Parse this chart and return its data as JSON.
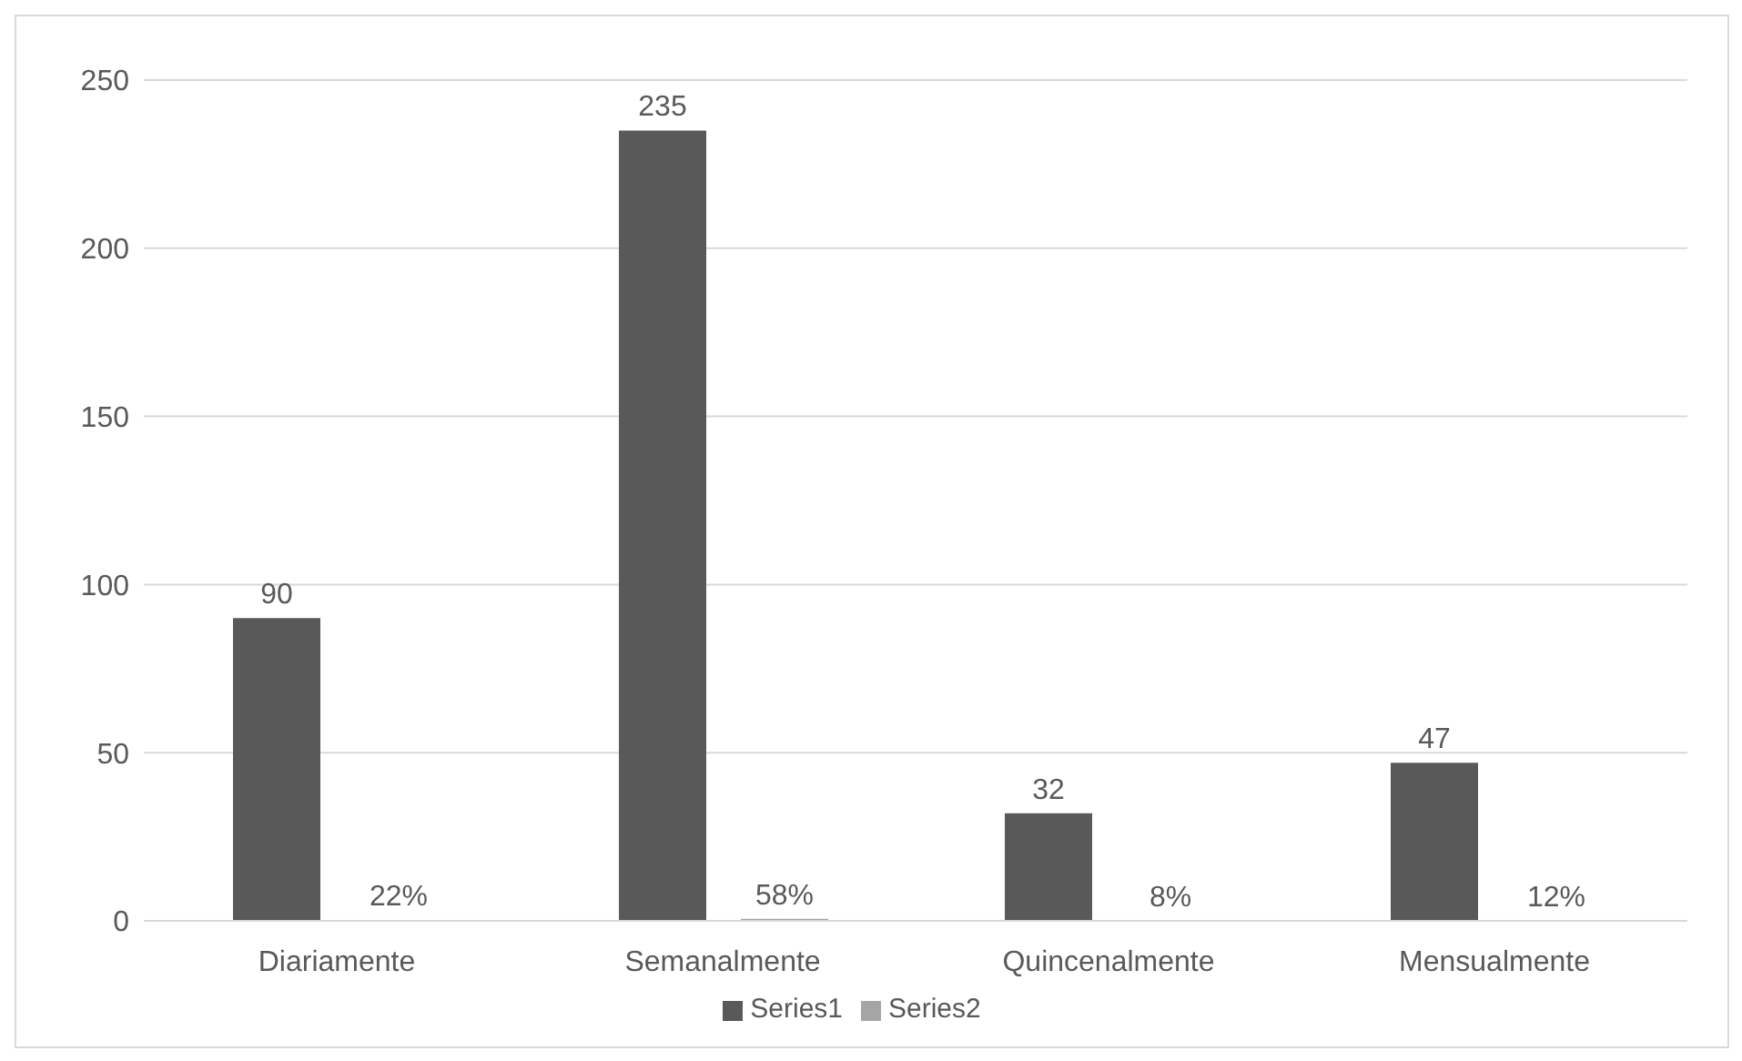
{
  "chart_data": {
    "type": "bar",
    "categories": [
      "Diariamente",
      "Semanalmente",
      "Quincenalmente",
      "Mensualmente"
    ],
    "series": [
      {
        "name": "Series1",
        "color": "#595959",
        "values": [
          90,
          235,
          32,
          47
        ],
        "value_labels": [
          "90",
          "235",
          "32",
          "47"
        ]
      },
      {
        "name": "Series2",
        "color": "#a5a5a5",
        "values": [
          0.22,
          0.58,
          0.08,
          0.12
        ],
        "value_labels": [
          "22%",
          "58%",
          "8%",
          "12%"
        ]
      }
    ],
    "ylim": [
      0,
      250
    ],
    "yticks": [
      0,
      50,
      100,
      150,
      200,
      250
    ],
    "grid": "y",
    "legend": "bottom"
  }
}
